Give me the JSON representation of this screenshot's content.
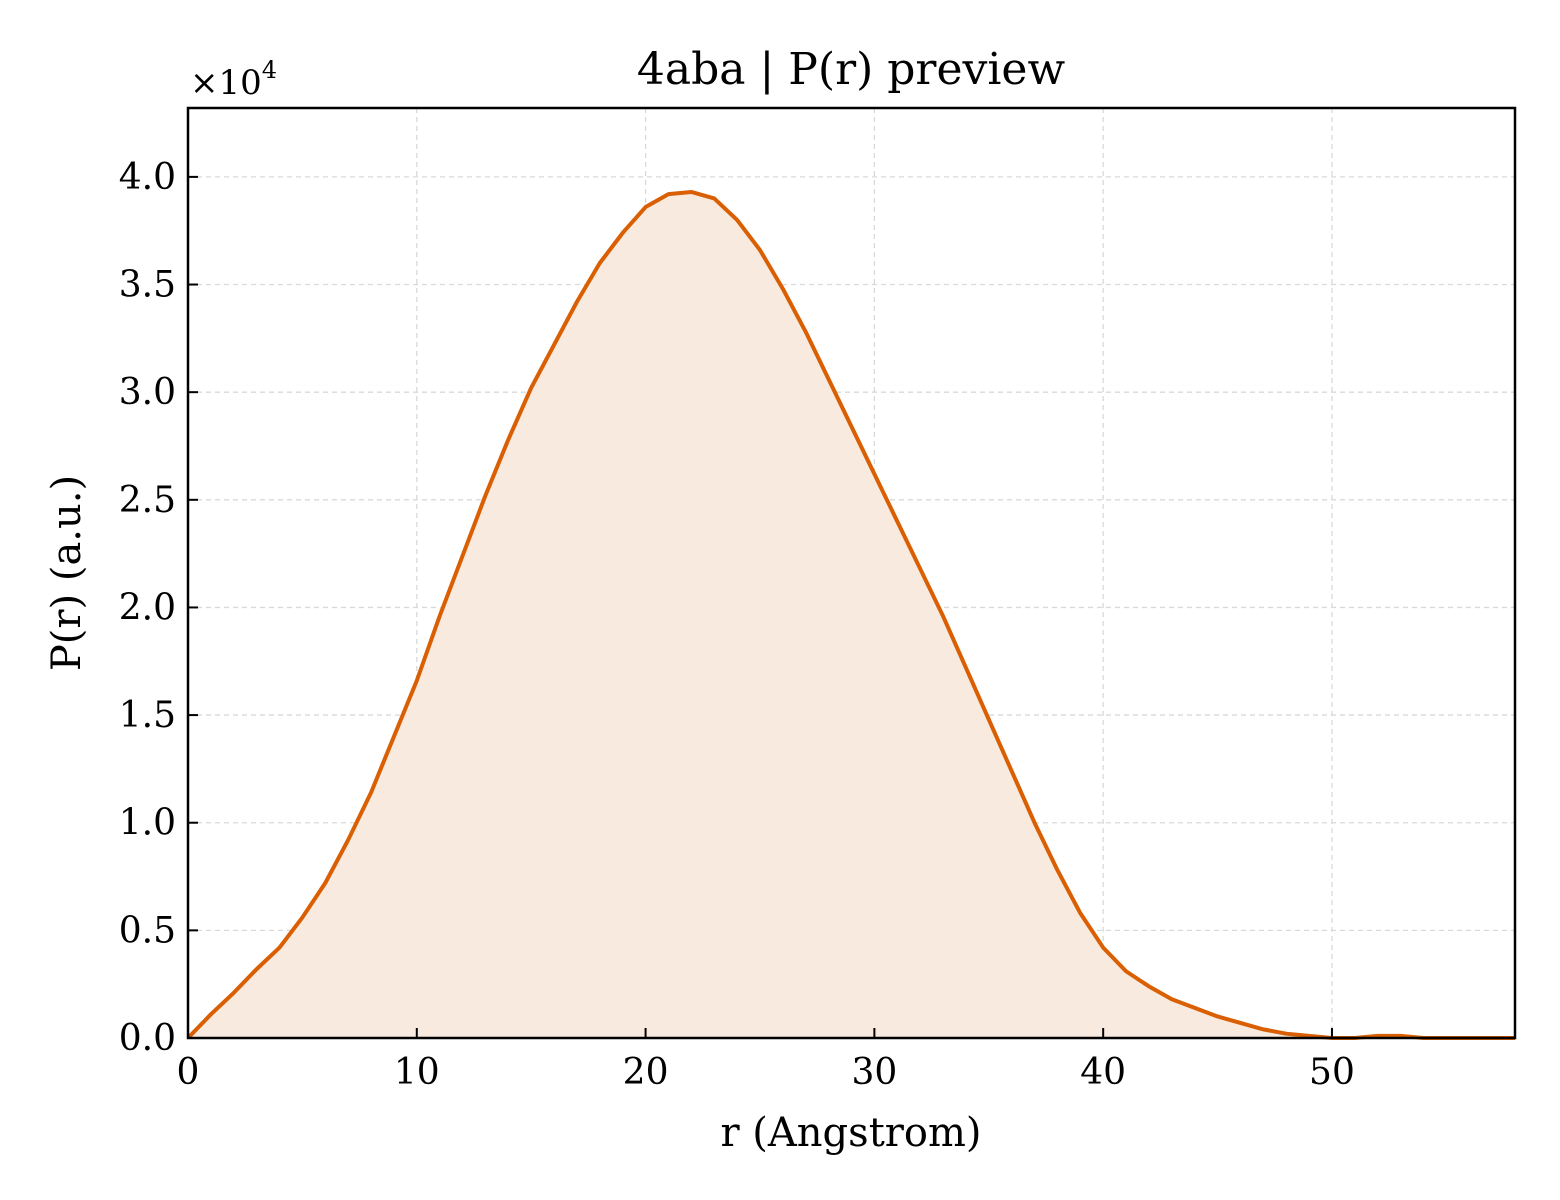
{
  "chart_data": {
    "type": "area",
    "title": "4aba | P(r) preview",
    "xlabel": "r (Angstrom)",
    "ylabel": "P(r) (a.u.)",
    "y_scale_label": "×10",
    "y_scale_exponent": "4",
    "xlim": [
      0,
      58
    ],
    "ylim": [
      0,
      4.32
    ],
    "y_units_multiplier": 10000,
    "x_ticks": [
      0,
      10,
      20,
      30,
      40,
      50
    ],
    "x_tick_labels": [
      "0",
      "10",
      "20",
      "30",
      "40",
      "50"
    ],
    "y_ticks": [
      0,
      0.5,
      1.0,
      1.5,
      2.0,
      2.5,
      3.0,
      3.5,
      4.0
    ],
    "y_tick_labels": [
      "0.0",
      "0.5",
      "1.0",
      "1.5",
      "2.0",
      "2.5",
      "3.0",
      "3.5",
      "4.0"
    ],
    "grid": true,
    "line_color": "#d95f02",
    "fill_color": "#f9eadf",
    "series": [
      {
        "x": [
          0,
          1,
          2,
          3,
          4,
          5,
          6,
          7,
          8,
          9,
          10,
          11,
          12,
          13,
          14,
          15,
          16,
          17,
          18,
          19,
          20,
          21,
          22,
          23,
          24,
          25,
          26,
          27,
          28,
          29,
          30,
          31,
          32,
          33,
          34,
          35,
          36,
          37,
          38,
          39,
          40,
          41,
          42,
          43,
          44,
          45,
          46,
          47,
          48,
          49,
          50,
          51,
          52,
          53,
          54,
          55,
          56,
          57,
          58
        ],
        "y": [
          0.0,
          0.11,
          0.21,
          0.32,
          0.42,
          0.56,
          0.72,
          0.92,
          1.14,
          1.4,
          1.66,
          1.96,
          2.24,
          2.52,
          2.78,
          3.02,
          3.22,
          3.42,
          3.6,
          3.74,
          3.86,
          3.92,
          3.93,
          3.9,
          3.8,
          3.66,
          3.48,
          3.28,
          3.06,
          2.84,
          2.62,
          2.4,
          2.18,
          1.96,
          1.72,
          1.48,
          1.24,
          1.0,
          0.78,
          0.58,
          0.42,
          0.31,
          0.24,
          0.18,
          0.14,
          0.1,
          0.07,
          0.04,
          0.02,
          0.01,
          0.0,
          0.0,
          0.01,
          0.01,
          0.0,
          0.0,
          0.0,
          0.0,
          0.0
        ]
      }
    ]
  }
}
